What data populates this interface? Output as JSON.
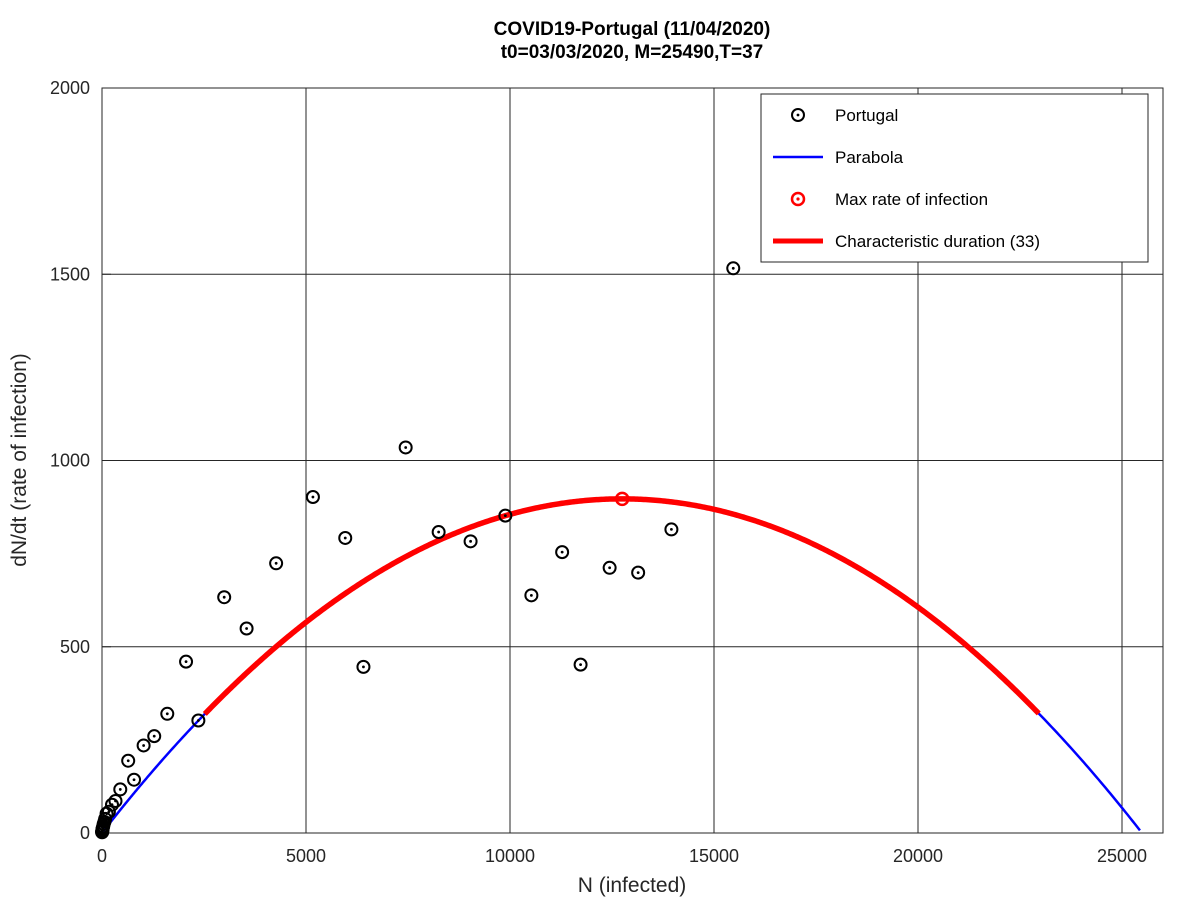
{
  "chart_data": {
    "type": "scatter",
    "title": "COVID19-Portugal (11/04/2020)",
    "subtitle": "t0=03/03/2020, M=25490,T=37",
    "xlabel": "N (infected)",
    "ylabel": "dN/dt (rate of infection)",
    "xlim": [
      0,
      26000
    ],
    "ylim": [
      0,
      2000
    ],
    "x_ticks": [
      0,
      5000,
      10000,
      15000,
      20000,
      25000
    ],
    "x_tick_labels": [
      "0",
      "5000",
      "10000",
      "15000",
      "20000",
      "25000"
    ],
    "y_ticks": [
      0,
      500,
      1000,
      1500,
      2000
    ],
    "y_tick_labels": [
      "0",
      "500",
      "1000",
      "1500",
      "2000"
    ],
    "grid": true,
    "legend_position": "top-right",
    "colors": {
      "points": "#000000",
      "parabola": "#0000ff",
      "max_point": "#ff0000",
      "characteristic": "#ff0000"
    },
    "series": [
      {
        "name": "Portugal",
        "kind": "scatter",
        "points": [
          [
            2,
            2
          ],
          [
            4,
            4
          ],
          [
            6,
            3
          ],
          [
            9,
            8
          ],
          [
            13,
            11
          ],
          [
            21,
            14
          ],
          [
            30,
            18
          ],
          [
            41,
            24
          ],
          [
            59,
            30
          ],
          [
            78,
            38
          ],
          [
            112,
            52
          ],
          [
            169,
            57
          ],
          [
            245,
            76
          ],
          [
            331,
            86
          ],
          [
            448,
            117
          ],
          [
            642,
            194
          ],
          [
            785,
            143
          ],
          [
            1020,
            235
          ],
          [
            1280,
            260
          ],
          [
            1600,
            320
          ],
          [
            2060,
            460
          ],
          [
            2362,
            302
          ],
          [
            2995,
            633
          ],
          [
            3544,
            549
          ],
          [
            4268,
            724
          ],
          [
            5170,
            902
          ],
          [
            5962,
            792
          ],
          [
            6408,
            446
          ],
          [
            7443,
            1035
          ],
          [
            8251,
            808
          ],
          [
            9034,
            783
          ],
          [
            9886,
            852
          ],
          [
            10524,
            638
          ],
          [
            11278,
            754
          ],
          [
            11730,
            452
          ],
          [
            12442,
            712
          ],
          [
            13141,
            699
          ],
          [
            13956,
            815
          ],
          [
            15472,
            1516
          ]
        ]
      },
      {
        "name": "Parabola",
        "kind": "curve",
        "vertex_x": 12750,
        "vertex_y": 897,
        "domain": [
          0,
          25490
        ]
      },
      {
        "name": "Max rate of infection",
        "kind": "point",
        "points": [
          [
            12750,
            897
          ]
        ]
      },
      {
        "name": "Characteristic duration (33)",
        "kind": "curve-segment",
        "domain": [
          2520,
          22980
        ]
      }
    ]
  }
}
